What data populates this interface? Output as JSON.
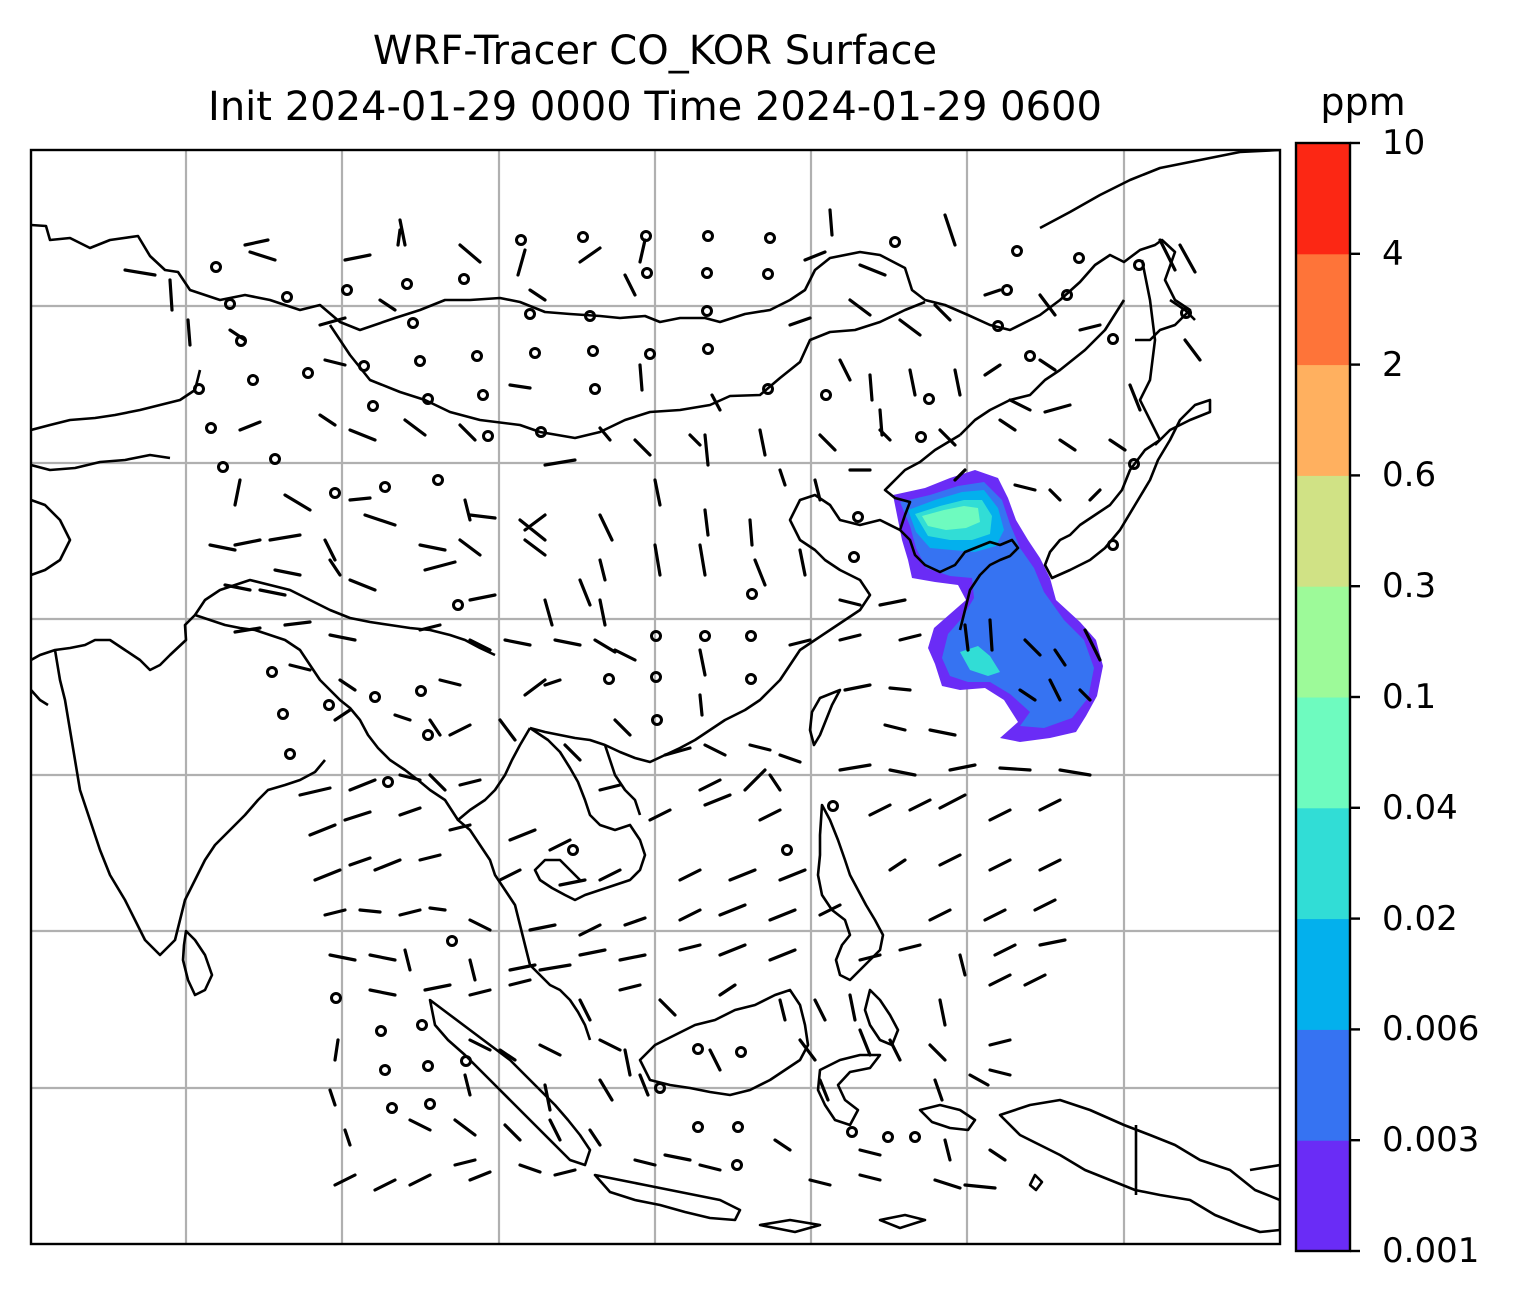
{
  "title": {
    "line1": "WRF-Tracer CO_KOR Surface",
    "line2": "Init 2024-01-29 0000 Time 2024-01-29 0600"
  },
  "colorbar": {
    "unit": "ppm",
    "levels": [
      "0.001",
      "0.003",
      "0.006",
      "0.02",
      "0.04",
      "0.1",
      "0.3",
      "0.6",
      "2",
      "4",
      "10"
    ],
    "colors": [
      "#6a2cf6",
      "#3673f2",
      "#03b0ed",
      "#31ddd6",
      "#6efbbf",
      "#9dfa99",
      "#d0e285",
      "#ffb05f",
      "#fe7439",
      "#fc2714"
    ]
  },
  "map": {
    "projection": "Mercator",
    "gridlines": true,
    "field": "surface CO tracer from Korea with wind barbs",
    "plume_region": "Korean Peninsula and adjacent Yellow Sea / East China Sea"
  }
}
